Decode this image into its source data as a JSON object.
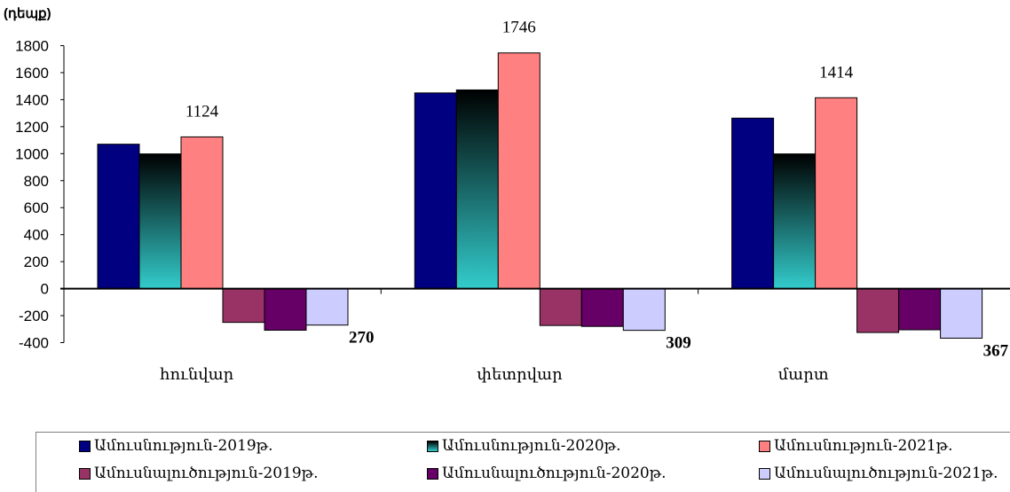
{
  "unit_label": "(դեպք)",
  "chart_data": {
    "type": "bar",
    "categories": [
      "հունվար",
      "փետրվար",
      "մարտ"
    ],
    "ylim": [
      -400,
      1800
    ],
    "yticks": [
      -400,
      -200,
      0,
      200,
      400,
      600,
      800,
      1000,
      1200,
      1400,
      1600,
      1800
    ],
    "grid": false,
    "legend_position": "bottom",
    "series": [
      {
        "name": "Ամուսնություն-2019թ.",
        "values": [
          1070,
          1450,
          1263
        ],
        "color": "#000080"
      },
      {
        "name": "Ամուսնություն-2020թ.",
        "values": [
          998,
          1472,
          998
        ],
        "color": "#33cccc",
        "gradient_top": "#000000"
      },
      {
        "name": "Ամուսնություն-2021թ.",
        "values": [
          1124,
          1746,
          1414
        ],
        "color": "#ff8080"
      },
      {
        "name": "Ամուսնալուծություն-2019թ.",
        "values": [
          -250,
          -273,
          -325
        ],
        "color": "#993366"
      },
      {
        "name": "Ամուսնալուծություն-2020թ.",
        "values": [
          -308,
          -280,
          -305
        ],
        "color": "#660066"
      },
      {
        "name": "Ամուսնալուծություն-2021թ.",
        "values": [
          -270,
          -309,
          -367
        ],
        "color": "#ccccff"
      }
    ],
    "data_labels": [
      {
        "series": 2,
        "category": 0,
        "text": "1124",
        "bold": false
      },
      {
        "series": 2,
        "category": 1,
        "text": "1746",
        "bold": false
      },
      {
        "series": 2,
        "category": 2,
        "text": "1414",
        "bold": false
      },
      {
        "series": 5,
        "category": 0,
        "text": "270",
        "bold": true
      },
      {
        "series": 5,
        "category": 1,
        "text": "309",
        "bold": true
      },
      {
        "series": 5,
        "category": 2,
        "text": "367",
        "bold": true
      }
    ]
  }
}
